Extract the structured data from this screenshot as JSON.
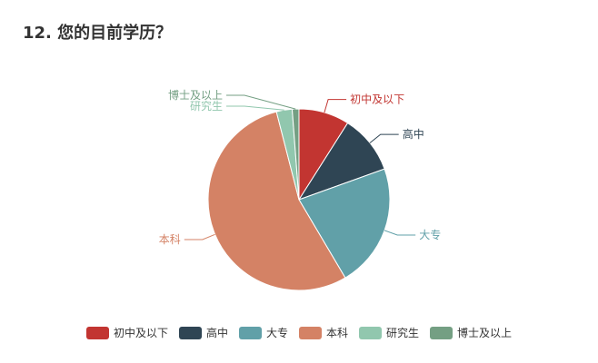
{
  "title": "12. 您的目前学历？",
  "chart_data": {
    "type": "pie",
    "categories": [
      "初中及以下",
      "高中",
      "大专",
      "本科",
      "研究生",
      "博士及以上"
    ],
    "values": [
      9.0,
      10.5,
      22.0,
      54.5,
      2.8,
      1.2
    ],
    "colors": [
      "#c23531",
      "#2f4554",
      "#61a0a8",
      "#d48265",
      "#91c7ae",
      "#749f83"
    ],
    "legend_position": "bottom"
  }
}
